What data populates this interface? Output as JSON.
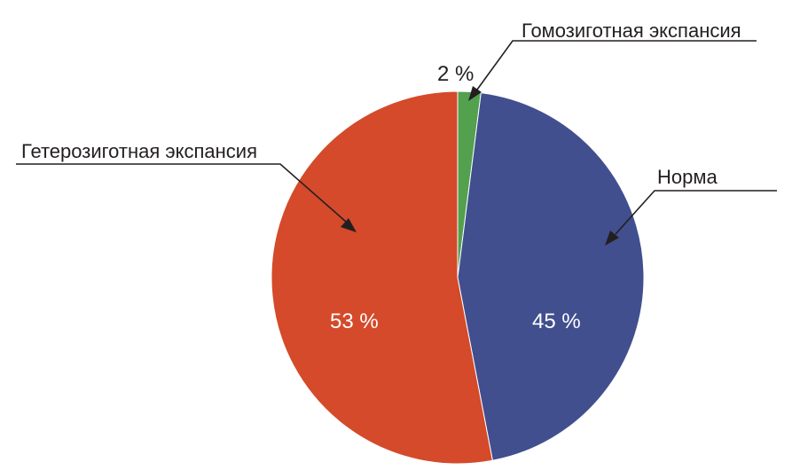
{
  "chart_data": {
    "type": "pie",
    "slices": [
      {
        "label": "Гомозиготная экспансия",
        "value": 2,
        "value_label": "2 %",
        "color": "#53a04e"
      },
      {
        "label": "Норма",
        "value": 45,
        "value_label": "45 %",
        "color": "#414f8f"
      },
      {
        "label": "Гетерозиготная экспансия",
        "value": 53,
        "value_label": "53 %",
        "color": "#d44a2a"
      }
    ],
    "start": "top",
    "direction": "clockwise",
    "legend": "none"
  }
}
